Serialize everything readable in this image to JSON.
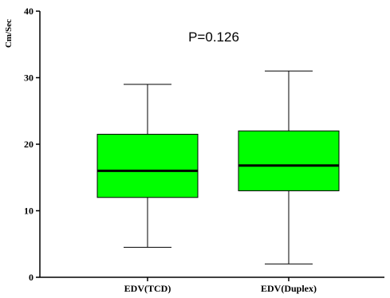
{
  "chart_data": {
    "type": "box",
    "title": "",
    "xlabel": "",
    "ylabel": "Cm/Sec",
    "ylim": [
      0,
      40
    ],
    "yticks": [
      0,
      10,
      20,
      30,
      40
    ],
    "annotation": "P=0.126",
    "box_color": "#00ff00",
    "grid": false,
    "categories": [
      "EDV(TCD)",
      "EDV(Duplex)"
    ],
    "boxes": [
      {
        "category": "EDV(TCD)",
        "min": 4.5,
        "q1": 12,
        "median": 16,
        "q3": 21.5,
        "max": 29
      },
      {
        "category": "EDV(Duplex)",
        "min": 2,
        "q1": 13,
        "median": 16.8,
        "q3": 22,
        "max": 31
      }
    ]
  }
}
